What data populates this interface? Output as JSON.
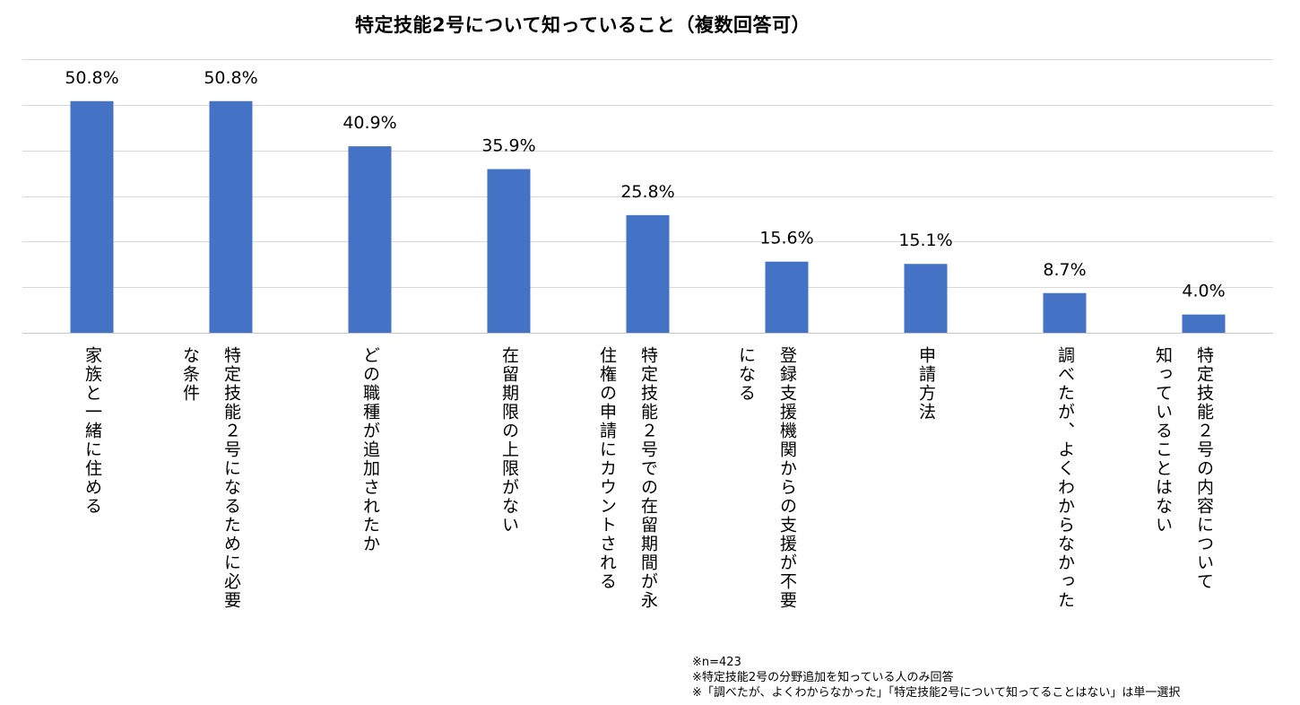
{
  "chart_data": {
    "type": "bar",
    "title": "特定技能2号について知っていること（複数回答可）",
    "categories": [
      "家族と一緒に住める",
      "特定技能２号になるために必要な条件",
      "どの職種が追加されたか",
      "在留期限の上限がない",
      "特定技能２号での在留期間が永住権の申請にカウントされる",
      "登録支援機関からの支援が不要になる",
      "申請方法",
      "調べたが、よくわからなかった",
      "特定技能２号の内容について知っていることはない"
    ],
    "category_lines": [
      [
        "家族と一緒に住める"
      ],
      [
        "特定技能２号になるために必要",
        "な条件"
      ],
      [
        "どの職種が追加されたか"
      ],
      [
        "在留期限の上限がない"
      ],
      [
        "特定技能２号での在留期間が永",
        "住権の申請にカウントされる"
      ],
      [
        "登録支援機関からの支援が不要",
        "になる"
      ],
      [
        "申請方法"
      ],
      [
        "調べたが、よくわからなかった"
      ],
      [
        "特定技能２号の内容について",
        "知っていることはない"
      ]
    ],
    "values": [
      50.8,
      50.8,
      40.9,
      35.9,
      25.8,
      15.6,
      15.1,
      8.7,
      4.0
    ],
    "value_labels": [
      "50.8%",
      "50.8%",
      "40.9%",
      "35.9%",
      "25.8%",
      "15.6%",
      "15.1%",
      "8.7%",
      "4.0%"
    ],
    "unit": "%",
    "ylim": [
      0,
      60
    ],
    "gridlines": [
      0,
      10,
      20,
      30,
      40,
      50,
      60
    ],
    "grid": true,
    "xlabel": "",
    "ylabel": "",
    "bar_color": "#4472C4"
  },
  "footnotes": [
    "※n=423",
    "※特定技能2号の分野追加を知っている人のみ回答",
    "※「調べたが、よくわからなかった」「特定技能2号について知ってることはない」は単一選択"
  ]
}
